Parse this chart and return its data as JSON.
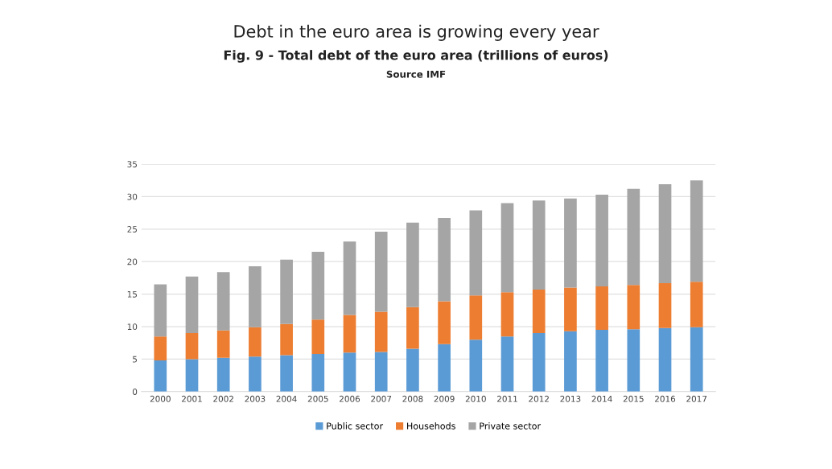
{
  "chart_data": {
    "type": "bar",
    "title": "Debt in the euro area is growing every year",
    "subtitle": "Fig. 9 - Total debt of the euro area (trillions of euros)",
    "annotations": [
      "Source IMF"
    ],
    "categories": [
      "2000",
      "2001",
      "2002",
      "2003",
      "2004",
      "2005",
      "2006",
      "2007",
      "2008",
      "2009",
      "2010",
      "2011",
      "2012",
      "2013",
      "2014",
      "2015",
      "2016",
      "2017"
    ],
    "stacked": true,
    "ylim": [
      0,
      35
    ],
    "yticks": [
      0,
      5,
      10,
      15,
      20,
      25,
      30,
      35
    ],
    "grid": "y",
    "legend": "bottom",
    "series": [
      {
        "name": "Public sector",
        "color": "#5b9bd5",
        "values": [
          4.8,
          5.0,
          5.2,
          5.4,
          5.6,
          5.8,
          6.0,
          6.1,
          6.6,
          7.3,
          8.0,
          8.5,
          9.0,
          9.3,
          9.5,
          9.6,
          9.8,
          9.9
        ]
      },
      {
        "name": "Househods",
        "color": "#ed7d31",
        "values": [
          3.7,
          4.0,
          4.2,
          4.5,
          4.8,
          5.3,
          5.8,
          6.2,
          6.4,
          6.6,
          6.8,
          6.8,
          6.7,
          6.7,
          6.7,
          6.8,
          6.9,
          7.0
        ]
      },
      {
        "name": "Private sector",
        "color": "#a5a5a5",
        "values": [
          8.0,
          8.7,
          9.0,
          9.4,
          9.9,
          10.4,
          11.3,
          12.3,
          13.0,
          12.8,
          13.1,
          13.7,
          13.7,
          13.7,
          14.1,
          14.8,
          15.2,
          15.6
        ]
      }
    ]
  }
}
